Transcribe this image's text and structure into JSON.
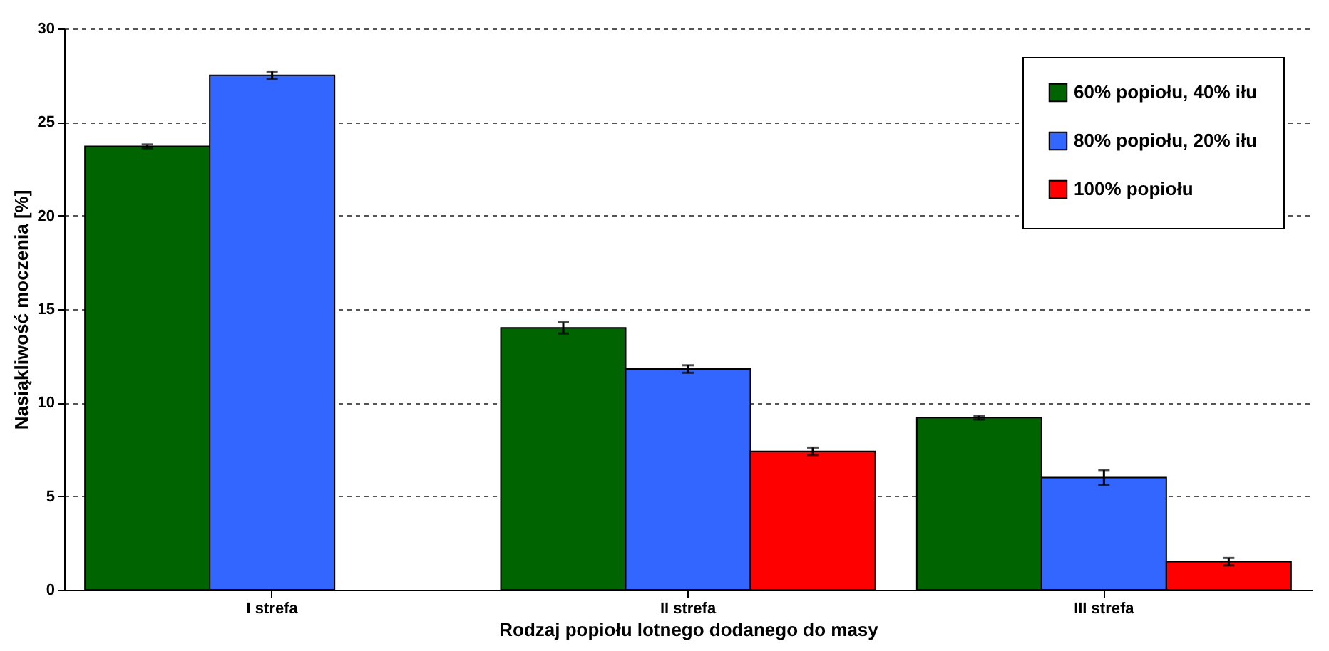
{
  "chart_data": {
    "type": "bar",
    "xlabel": "Rodzaj popiołu lotnego dodanego do masy",
    "ylabel": "Nasiąkliwość moczenia [%]",
    "categories": [
      "I strefa",
      "II strefa",
      "III strefa"
    ],
    "series": [
      {
        "name": "60% popiołu, 40% iłu",
        "color": "#006400",
        "values": [
          23.7,
          14.0,
          9.2
        ],
        "errors": [
          0.1,
          0.3,
          0.1
        ]
      },
      {
        "name": "80% popiołu, 20% iłu",
        "color": "#3366ff",
        "values": [
          27.5,
          11.8,
          6.0
        ],
        "errors": [
          0.2,
          0.2,
          0.4
        ]
      },
      {
        "name": "100% popiołu",
        "color": "#ff0000",
        "values": [
          null,
          7.4,
          1.5
        ],
        "errors": [
          null,
          0.2,
          0.2
        ]
      }
    ],
    "ylim": [
      0,
      30
    ],
    "yticks": [
      0,
      5,
      10,
      15,
      20,
      25,
      30
    ],
    "grid": "y",
    "legend": "top right"
  }
}
